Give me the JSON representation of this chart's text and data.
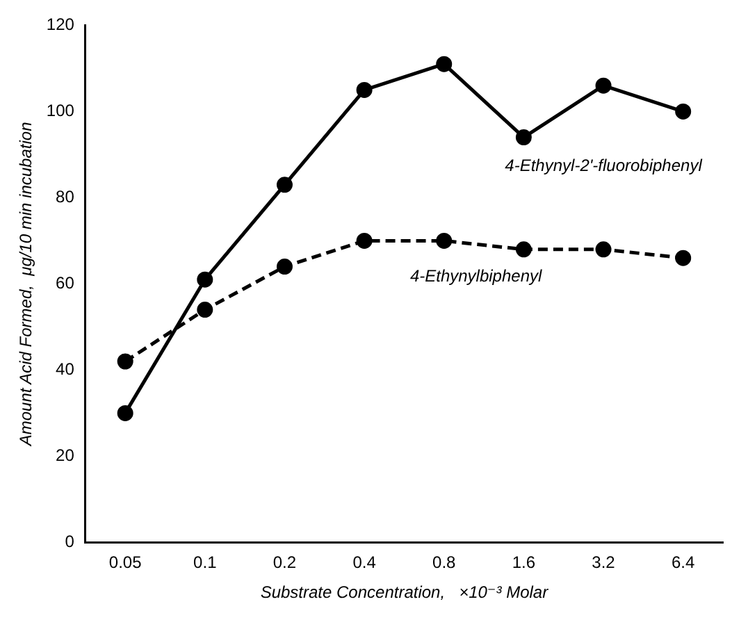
{
  "chart_data": {
    "type": "line",
    "xlabel": "Substrate Concentration,   ×10⁻³ Molar",
    "ylabel": "Amount Acid Formed,  μg/10 min incubation",
    "categories": [
      "0.05",
      "0.1",
      "0.2",
      "0.4",
      "0.8",
      "1.6",
      "3.2",
      "6.4"
    ],
    "series": [
      {
        "name": "4-Ethynyl-2'-fluorobiphenyl",
        "color": "#000000",
        "line_style": "solid",
        "values": [
          30,
          61,
          83,
          105,
          111,
          94,
          106,
          100
        ]
      },
      {
        "name": "4-Ethynylbiphenyl",
        "color": "#000000",
        "line_style": "dashed",
        "values": [
          42,
          54,
          64,
          70,
          70,
          68,
          68,
          66
        ]
      }
    ],
    "ylim": [
      0,
      120
    ],
    "yticks": [
      0,
      20,
      40,
      60,
      80,
      100,
      120
    ],
    "grid": false,
    "legend": false,
    "marker": "circle"
  }
}
